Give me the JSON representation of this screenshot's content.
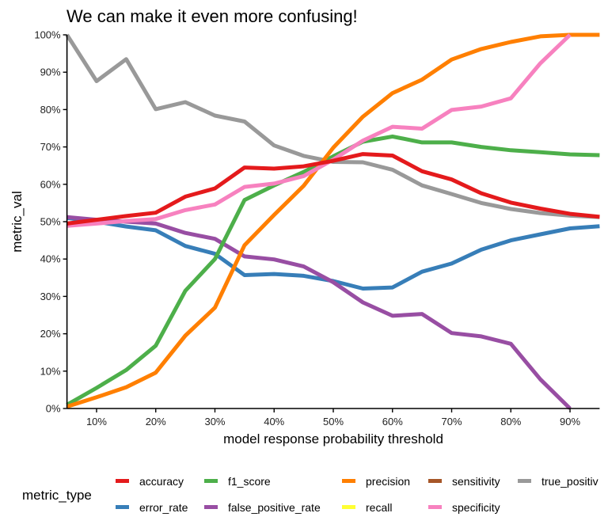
{
  "chart_data": {
    "type": "line",
    "title": "We can make it even more confusing!",
    "xlabel": "model response probability threshold",
    "ylabel": "metric_val",
    "xlim": [
      0.05,
      0.95
    ],
    "ylim": [
      0,
      1
    ],
    "grid": false,
    "x_ticks": [
      0.1,
      0.2,
      0.3,
      0.4,
      0.5,
      0.6,
      0.7,
      0.8,
      0.9
    ],
    "x_tick_labels": [
      "10%",
      "20%",
      "30%",
      "40%",
      "50%",
      "60%",
      "70%",
      "80%",
      "90%"
    ],
    "y_ticks": [
      0,
      0.1,
      0.2,
      0.3,
      0.4,
      0.5,
      0.6,
      0.7,
      0.8,
      0.9,
      1.0
    ],
    "y_tick_labels": [
      "0%",
      "10%",
      "20%",
      "30%",
      "40%",
      "50%",
      "60%",
      "70%",
      "80%",
      "90%",
      "100%"
    ],
    "legend": {
      "title": "metric_type",
      "placement": "bottom",
      "entries": [
        {
          "name": "accuracy",
          "color": "#E41A1C"
        },
        {
          "name": "error_rate",
          "color": "#377EB8"
        },
        {
          "name": "f1_score",
          "color": "#4DAF4A"
        },
        {
          "name": "false_positive_rate",
          "color": "#984EA3"
        },
        {
          "name": "precision",
          "color": "#FF7F00"
        },
        {
          "name": "recall",
          "color": "#FFFF33"
        },
        {
          "name": "sensitivity",
          "color": "#A65628"
        },
        {
          "name": "specificity",
          "color": "#F781BF"
        },
        {
          "name": "true_positiv",
          "color": "#999999"
        }
      ]
    },
    "x": [
      0.05,
      0.1,
      0.15,
      0.2,
      0.25,
      0.3,
      0.35,
      0.4,
      0.45,
      0.5,
      0.55,
      0.6,
      0.65,
      0.7,
      0.75,
      0.8,
      0.85,
      0.9,
      0.95
    ],
    "series": [
      {
        "name": "true_positive",
        "color": "#999999",
        "values": [
          1.0,
          0.876,
          0.935,
          0.801,
          0.82,
          0.784,
          0.768,
          0.704,
          0.676,
          0.66,
          0.659,
          0.639,
          0.597,
          0.574,
          0.55,
          0.534,
          0.523,
          0.516,
          0.512
        ]
      },
      {
        "name": "error_rate",
        "color": "#377EB8",
        "values": [
          0.51,
          0.5,
          0.487,
          0.477,
          0.435,
          0.414,
          0.357,
          0.36,
          0.355,
          0.341,
          0.321,
          0.324,
          0.366,
          0.388,
          0.425,
          0.45,
          0.466,
          0.482,
          0.488
        ]
      },
      {
        "name": "false_positive_rate",
        "color": "#984EA3",
        "values": [
          0.512,
          0.505,
          0.5,
          0.495,
          0.47,
          0.454,
          0.407,
          0.399,
          0.38,
          0.338,
          0.284,
          0.248,
          0.253,
          0.202,
          0.193,
          0.173,
          0.078,
          0.0,
          null
        ]
      },
      {
        "name": "f1_score",
        "color": "#4DAF4A",
        "values": [
          0.01,
          0.055,
          0.103,
          0.168,
          0.315,
          0.4,
          0.558,
          0.597,
          0.633,
          0.675,
          0.714,
          0.728,
          0.712,
          0.712,
          0.7,
          0.691,
          0.686,
          0.68,
          0.678
        ]
      },
      {
        "name": "precision",
        "color": "#FF7F00",
        "values": [
          0.005,
          0.03,
          0.057,
          0.096,
          0.195,
          0.27,
          0.437,
          0.518,
          0.596,
          0.698,
          0.781,
          0.844,
          0.88,
          0.934,
          0.962,
          0.981,
          0.996,
          1.0,
          1.0
        ]
      },
      {
        "name": "specificity",
        "color": "#F781BF",
        "values": [
          0.489,
          0.495,
          0.502,
          0.507,
          0.531,
          0.546,
          0.593,
          0.602,
          0.622,
          0.666,
          0.717,
          0.754,
          0.749,
          0.799,
          0.808,
          0.83,
          0.924,
          1.0,
          null
        ]
      },
      {
        "name": "accuracy",
        "color": "#E41A1C",
        "values": [
          0.495,
          0.505,
          0.515,
          0.524,
          0.567,
          0.589,
          0.645,
          0.642,
          0.648,
          0.663,
          0.681,
          0.677,
          0.635,
          0.613,
          0.576,
          0.551,
          0.535,
          0.521,
          0.513
        ]
      }
    ]
  }
}
